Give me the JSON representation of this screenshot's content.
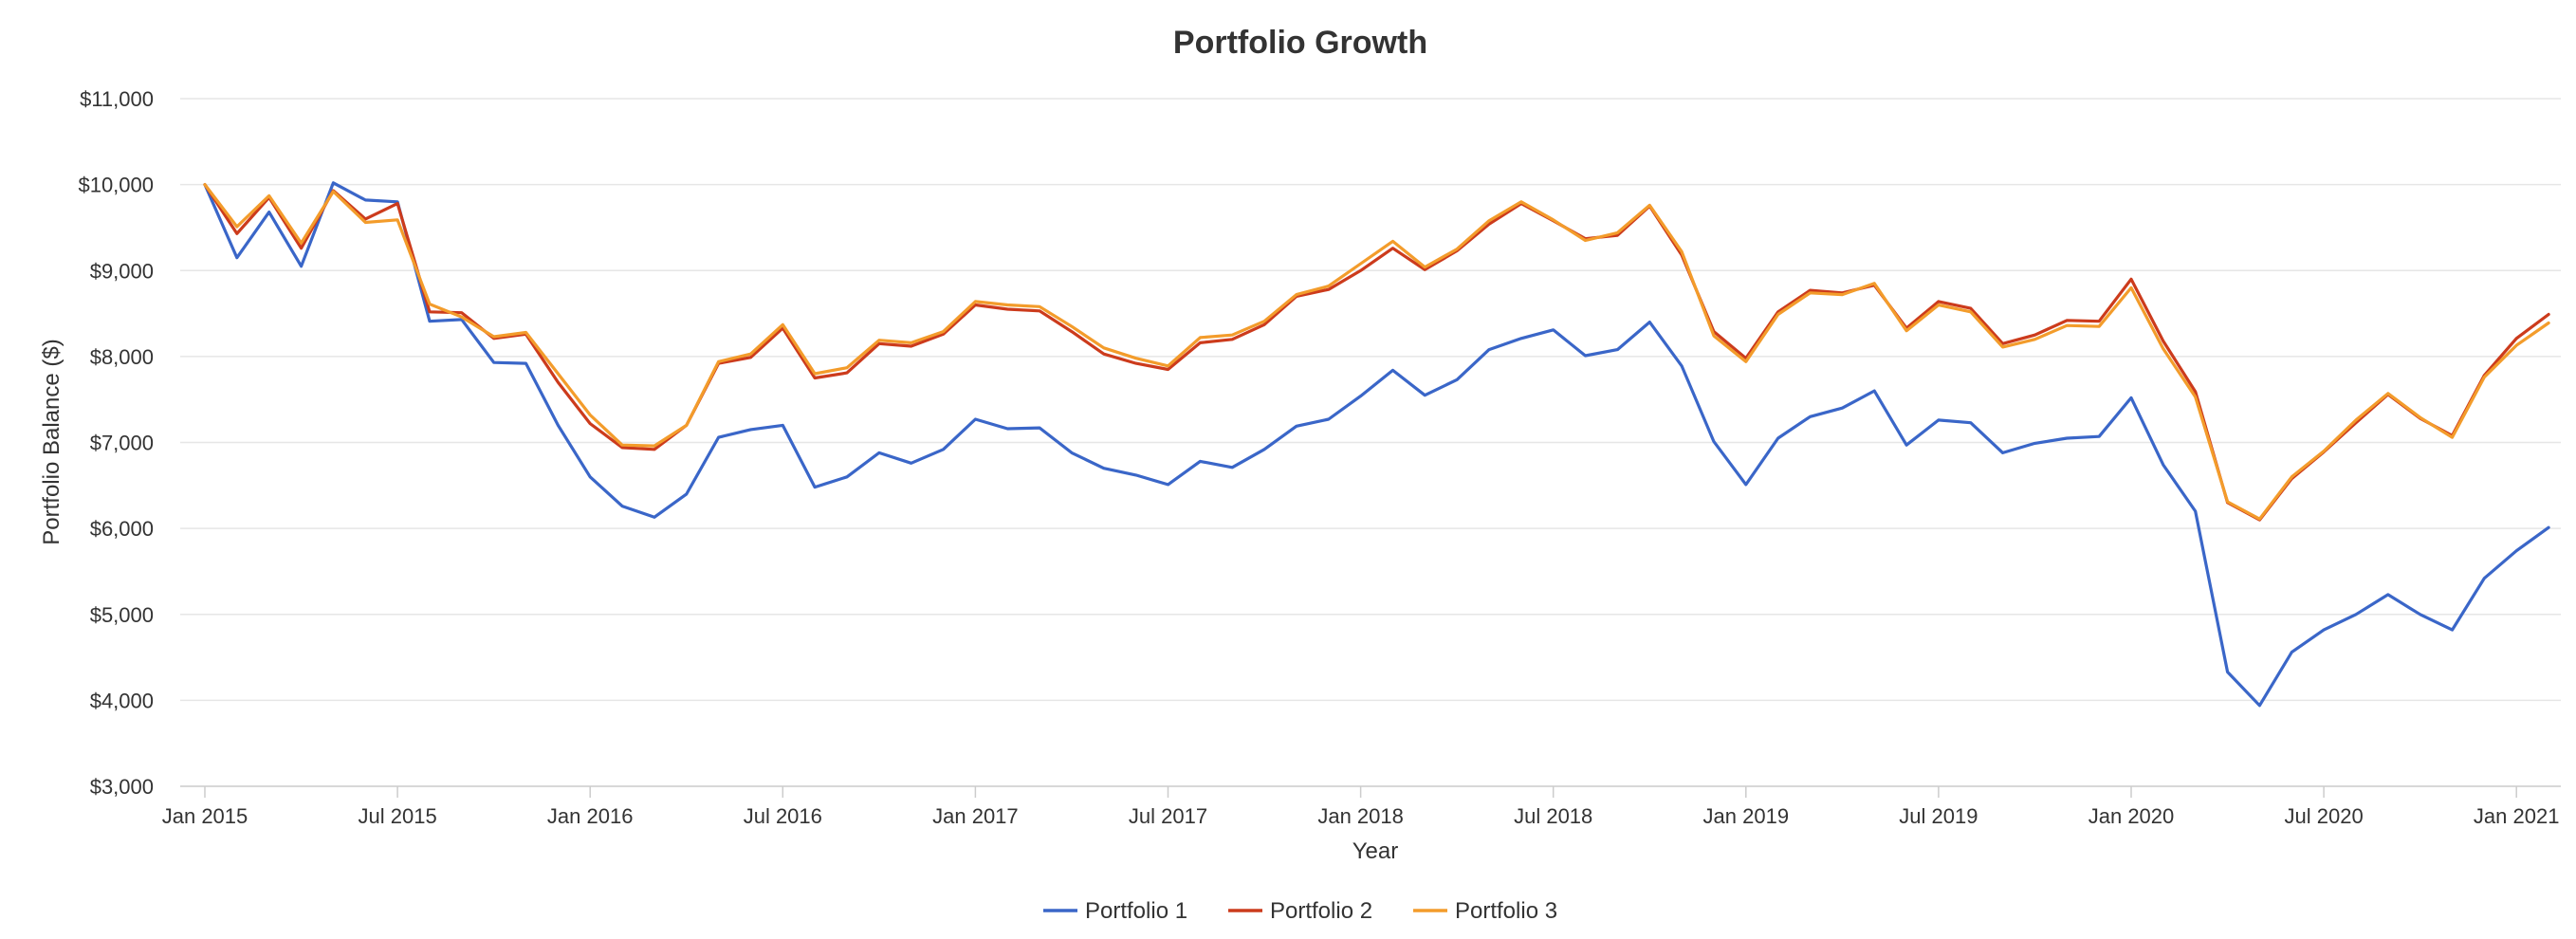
{
  "chart_data": {
    "type": "line",
    "title": "Portfolio Growth",
    "xlabel": "Year",
    "ylabel": "Portfolio Balance ($)",
    "ylim": [
      3000,
      11000
    ],
    "ytick_values": [
      3000,
      4000,
      5000,
      6000,
      7000,
      8000,
      9000,
      10000,
      11000
    ],
    "ytick_labels": [
      "$3,000",
      "$4,000",
      "$5,000",
      "$6,000",
      "$7,000",
      "$8,000",
      "$9,000",
      "$10,000",
      "$11,000"
    ],
    "x_start": "Jan 2015",
    "x_end": "Feb 2021",
    "xtick_month_indices": [
      0,
      6,
      12,
      18,
      24,
      30,
      36,
      42,
      48,
      54,
      60,
      66,
      72
    ],
    "xtick_labels": [
      "Jan 2015",
      "Jul 2015",
      "Jan 2016",
      "Jul 2016",
      "Jan 2017",
      "Jul 2017",
      "Jan 2018",
      "Jul 2018",
      "Jan 2019",
      "Jul 2019",
      "Jan 2020",
      "Jul 2020",
      "Jan 2021"
    ],
    "grid": true,
    "legend_position": "bottom-center",
    "series": [
      {
        "name": "Portfolio 1",
        "color": "#3a66c8",
        "values": [
          10000,
          9150,
          9680,
          9050,
          10020,
          9820,
          9800,
          8410,
          8430,
          7930,
          7920,
          7200,
          6600,
          6260,
          6130,
          6400,
          7060,
          7150,
          7200,
          6480,
          6600,
          6880,
          6760,
          6920,
          7270,
          7160,
          7170,
          6880,
          6700,
          6620,
          6510,
          6780,
          6710,
          6920,
          7190,
          7270,
          7540,
          7840,
          7550,
          7730,
          8080,
          8210,
          8310,
          8010,
          8080,
          8400,
          7890,
          7010,
          6510,
          7050,
          7300,
          7400,
          7600,
          6970,
          7260,
          7230,
          6880,
          6990,
          7050,
          7070,
          7520,
          6740,
          6200,
          4330,
          3940,
          4560,
          4820,
          5000,
          5230,
          5000,
          4820,
          5420,
          5740,
          6010
        ]
      },
      {
        "name": "Portfolio 2",
        "color": "#cc3b1c",
        "values": [
          10000,
          9430,
          9850,
          9260,
          9930,
          9600,
          9780,
          8520,
          8510,
          8210,
          8260,
          7700,
          7220,
          6940,
          6920,
          7200,
          7920,
          7990,
          8330,
          7750,
          7810,
          8150,
          8120,
          8260,
          8600,
          8550,
          8530,
          8290,
          8030,
          7920,
          7850,
          8160,
          8200,
          8370,
          8700,
          8780,
          9000,
          9260,
          9010,
          9230,
          9540,
          9780,
          9580,
          9370,
          9410,
          9750,
          9180,
          8290,
          7980,
          8520,
          8770,
          8740,
          8830,
          8330,
          8640,
          8560,
          8150,
          8250,
          8420,
          8410,
          8900,
          8180,
          7590,
          6300,
          6100,
          6580,
          6890,
          7230,
          7560,
          7280,
          7080,
          7780,
          8210,
          8490
        ]
      },
      {
        "name": "Portfolio 3",
        "color": "#f39c2b",
        "values": [
          10000,
          9510,
          9870,
          9320,
          9920,
          9560,
          9590,
          8610,
          8460,
          8230,
          8280,
          7800,
          7320,
          6970,
          6960,
          7200,
          7940,
          8030,
          8370,
          7800,
          7870,
          8190,
          8160,
          8290,
          8640,
          8600,
          8580,
          8350,
          8100,
          7980,
          7890,
          8220,
          8250,
          8410,
          8720,
          8820,
          9080,
          9340,
          9040,
          9250,
          9580,
          9800,
          9590,
          9350,
          9440,
          9760,
          9220,
          8240,
          7940,
          8490,
          8740,
          8720,
          8850,
          8300,
          8600,
          8520,
          8110,
          8200,
          8360,
          8350,
          8800,
          8090,
          7530,
          6310,
          6110,
          6600,
          6900,
          7260,
          7570,
          7290,
          7060,
          7760,
          8130,
          8390
        ]
      }
    ]
  }
}
